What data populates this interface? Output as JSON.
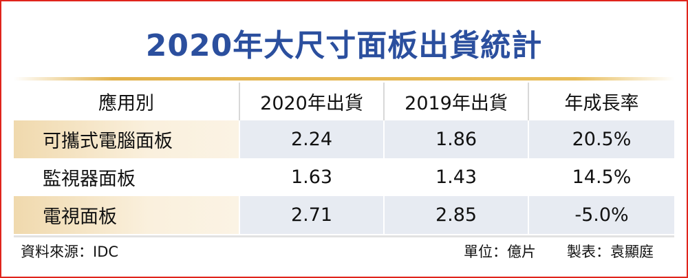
{
  "header": {
    "title": "2020年大尺寸面板出貨統計"
  },
  "table": {
    "headers": [
      "應用別",
      "2020年出貨",
      "2019年出貨",
      "年成長率"
    ],
    "rows": [
      [
        "可攜式電腦面板",
        "2.24",
        "1.86",
        "20.5%"
      ],
      [
        "監視器面板",
        "1.63",
        "1.43",
        "14.5%"
      ],
      [
        "電視面板",
        "2.71",
        "2.85",
        "-5.0%"
      ]
    ]
  },
  "footer": {
    "source": "資料來源：IDC",
    "unit": "單位：億片",
    "author": "製表：袁顯庭"
  }
}
